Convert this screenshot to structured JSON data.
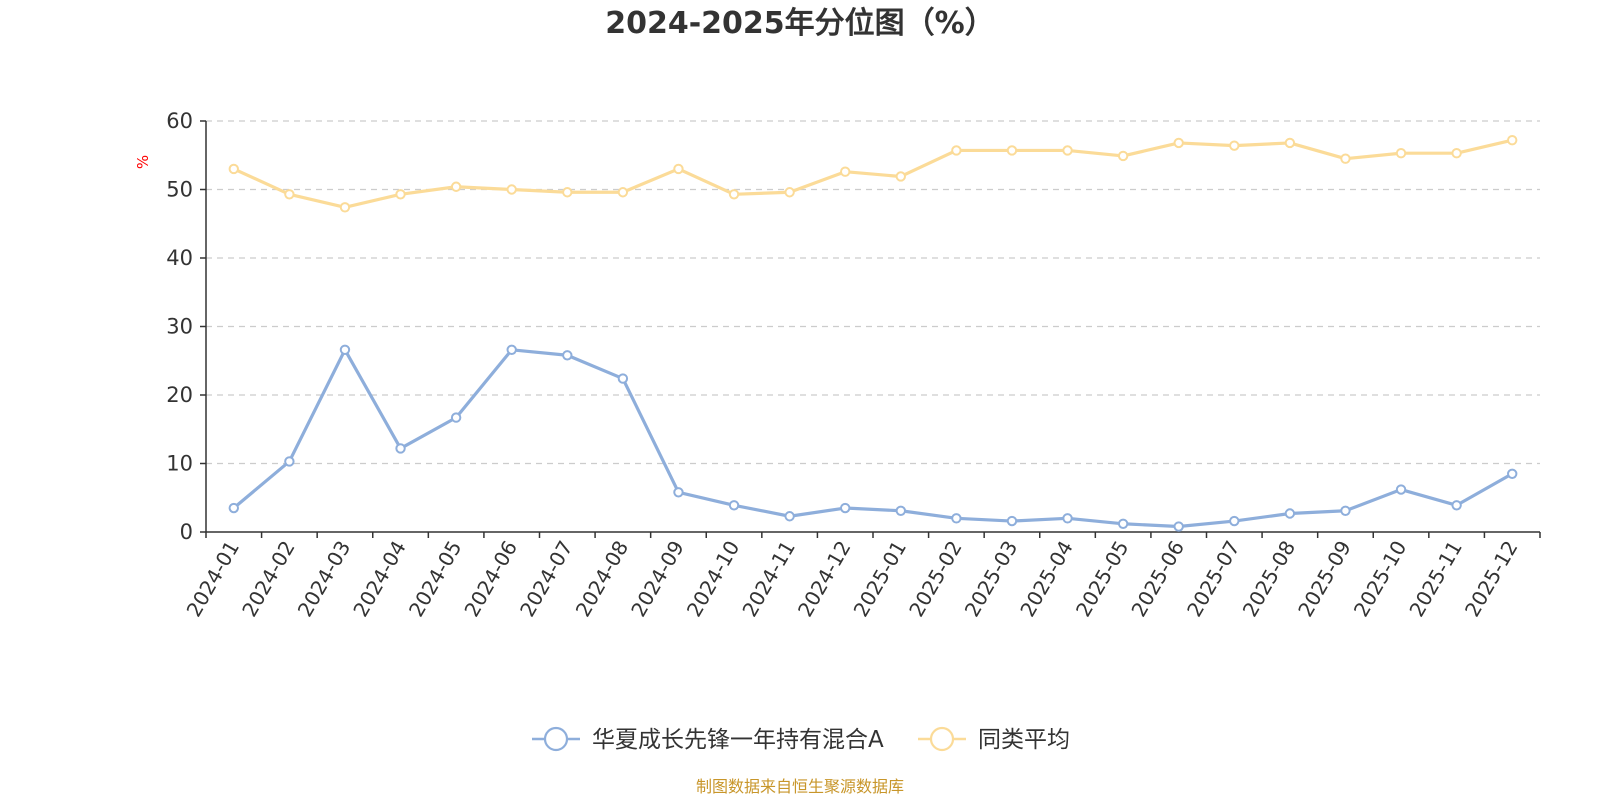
{
  "chart_data": {
    "type": "line",
    "title": "2024-2025年分位图（%）",
    "ylabel": "%",
    "ylim": [
      0,
      60
    ],
    "yticks": [
      0,
      10,
      20,
      30,
      40,
      50,
      60
    ],
    "grid": true,
    "legend_position": "bottom-center",
    "categories": [
      "2024-01",
      "2024-02",
      "2024-03",
      "2024-04",
      "2024-05",
      "2024-06",
      "2024-07",
      "2024-08",
      "2024-09",
      "2024-10",
      "2024-11",
      "2024-12",
      "2025-01",
      "2025-02",
      "2025-03",
      "2025-04",
      "2025-05",
      "2025-06",
      "2025-07",
      "2025-08",
      "2025-09",
      "2025-10",
      "2025-11",
      "2025-12"
    ],
    "series": [
      {
        "name": "华夏成长先锋一年持有混合A",
        "color": "#8eaedb",
        "values": [
          3.5,
          10.3,
          26.6,
          12.2,
          16.7,
          26.6,
          25.8,
          22.4,
          5.8,
          3.9,
          2.3,
          3.5,
          3.1,
          2.0,
          1.6,
          2.0,
          1.2,
          0.8,
          1.6,
          2.7,
          3.1,
          6.2,
          3.9,
          8.5
        ]
      },
      {
        "name": "同类平均",
        "color": "#fbdb98",
        "values": [
          53.0,
          49.3,
          47.4,
          49.3,
          50.4,
          50.0,
          49.6,
          49.6,
          53.0,
          49.3,
          49.6,
          52.6,
          51.9,
          55.7,
          55.7,
          55.7,
          54.9,
          56.8,
          56.4,
          56.8,
          54.5,
          55.3,
          55.3,
          57.2
        ]
      }
    ],
    "source": "制图数据来自恒生聚源数据库",
    "colors": {
      "axis": "#333333",
      "grid": "#cccccc",
      "unit": "#ff0000",
      "source": "#c8962a",
      "title": "#333333"
    }
  }
}
